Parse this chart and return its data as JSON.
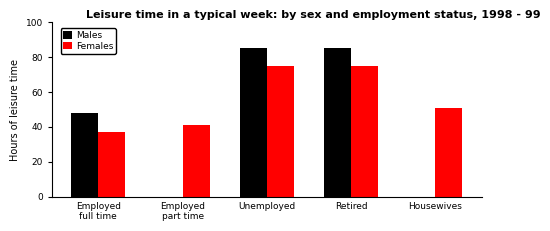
{
  "title": "Leisure time in a typical week: by sex and employment status, 1998 - 99",
  "ylabel": "Hours of leisure time",
  "categories": [
    "Employed\nfull time",
    "Employed\npart time",
    "Unemployed",
    "Retired",
    "Housewives"
  ],
  "males": [
    48,
    0,
    85,
    85,
    0
  ],
  "females": [
    37,
    41,
    75,
    75,
    51
  ],
  "male_color": "#000000",
  "female_color": "#ff0000",
  "ylim": [
    0,
    100
  ],
  "yticks": [
    0,
    20,
    40,
    60,
    80,
    100
  ],
  "bar_width": 0.32,
  "legend_labels": [
    "Males",
    "Females"
  ],
  "background_color": "#ffffff",
  "title_fontsize": 8,
  "label_fontsize": 7,
  "tick_fontsize": 6.5,
  "legend_fontsize": 6.5
}
